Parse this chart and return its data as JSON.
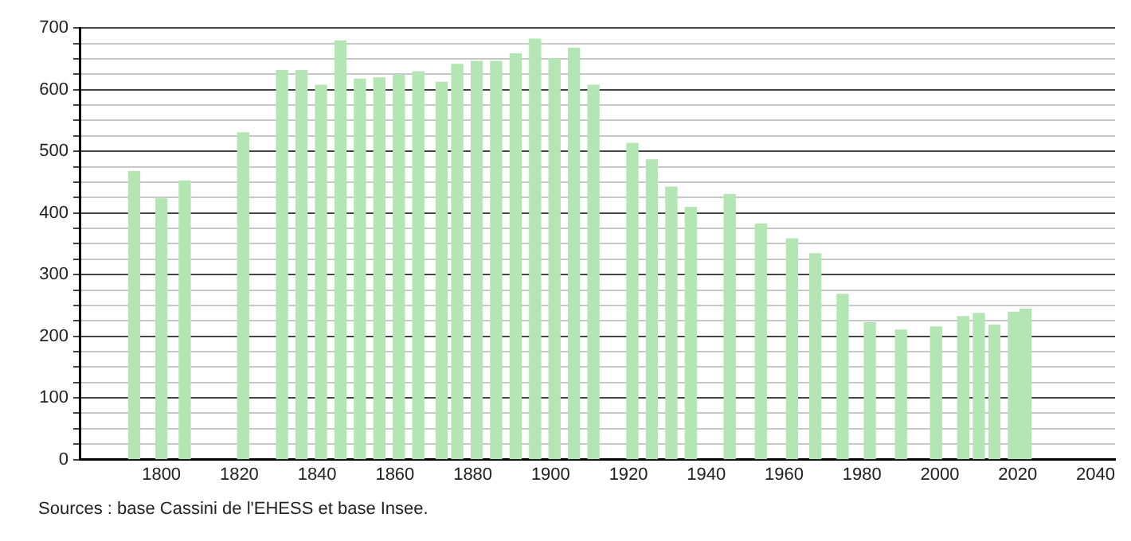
{
  "chart_data": {
    "type": "bar",
    "x": [
      1793,
      1800,
      1806,
      1821,
      1831,
      1836,
      1841,
      1846,
      1851,
      1856,
      1861,
      1866,
      1872,
      1876,
      1881,
      1886,
      1891,
      1896,
      1901,
      1906,
      1911,
      1921,
      1926,
      1931,
      1936,
      1946,
      1954,
      1962,
      1968,
      1975,
      1982,
      1990,
      1999,
      2006,
      2010,
      2014,
      2019,
      2022
    ],
    "values": [
      467,
      423,
      452,
      530,
      631,
      631,
      607,
      679,
      617,
      619,
      624,
      629,
      612,
      641,
      646,
      646,
      658,
      682,
      650,
      667,
      607,
      513,
      486,
      442,
      409,
      430,
      382,
      358,
      334,
      268,
      222,
      210,
      215,
      232,
      237,
      218,
      239,
      244
    ],
    "color": "#b3e6b3",
    "xlim": [
      1779,
      2045
    ],
    "xticks": [
      1800,
      1820,
      1840,
      1860,
      1880,
      1900,
      1920,
      1940,
      1960,
      1980,
      2000,
      2020,
      2040
    ],
    "ylim": [
      0,
      700
    ],
    "yticks": [
      0,
      {
        "value": 25,
        "label": null
      },
      {
        "value": 50,
        "label": null
      },
      {
        "value": 75,
        "label": null
      },
      100,
      {
        "value": 125,
        "label": null
      },
      {
        "value": 150,
        "label": null
      },
      {
        "value": 175,
        "label": null
      },
      200,
      {
        "value": 225,
        "label": null
      },
      {
        "value": 250,
        "label": null
      },
      {
        "value": 275,
        "label": null
      },
      300,
      {
        "value": 325,
        "label": null
      },
      {
        "value": 350,
        "label": null
      },
      {
        "value": 375,
        "label": null
      },
      400,
      {
        "value": 425,
        "label": null
      },
      {
        "value": 450,
        "label": null
      },
      {
        "value": 475,
        "label": null
      },
      500,
      {
        "value": 525,
        "label": null
      },
      {
        "value": 550,
        "label": null
      },
      {
        "value": 575,
        "label": null
      },
      600,
      {
        "value": 625,
        "label": null
      },
      {
        "value": 650,
        "label": null
      },
      {
        "value": 675,
        "label": null
      },
      700
    ],
    "grid": "y",
    "legend": false,
    "annotations": [
      "Sources : base Cassini de l'EHESS et base Insee."
    ]
  }
}
